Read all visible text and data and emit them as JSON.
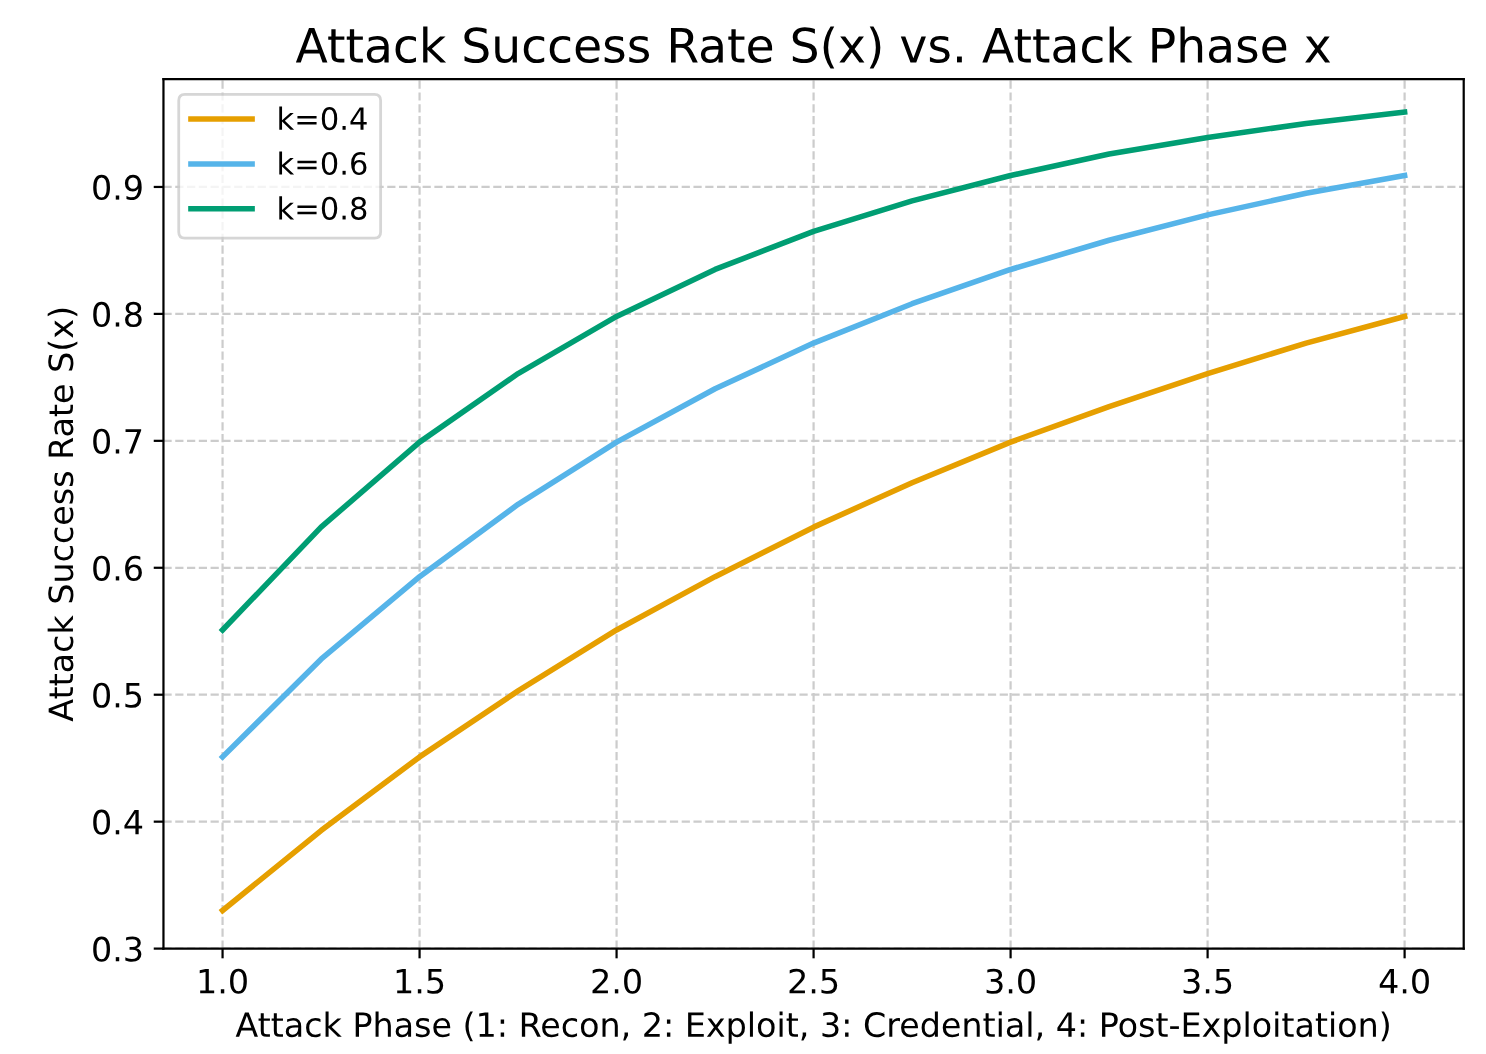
{
  "chart_data": {
    "type": "line",
    "title": "Attack Success Rate S(x) vs. Attack Phase x",
    "xlabel": "Attack Phase (1: Recon, 2: Exploit, 3: Credential, 4: Post-Exploitation)",
    "ylabel": "Attack Success Rate S(x)",
    "x": [
      1.0,
      1.25,
      1.5,
      1.75,
      2.0,
      2.25,
      2.5,
      2.75,
      3.0,
      3.25,
      3.5,
      3.75,
      4.0
    ],
    "series": [
      {
        "name": "k=0.4",
        "color": "#e69f00",
        "values": [
          0.33,
          0.393,
          0.451,
          0.503,
          0.551,
          0.593,
          0.632,
          0.667,
          0.699,
          0.727,
          0.753,
          0.777,
          0.798
        ]
      },
      {
        "name": "k=0.6",
        "color": "#56b4e9",
        "values": [
          0.451,
          0.528,
          0.593,
          0.65,
          0.699,
          0.741,
          0.777,
          0.808,
          0.835,
          0.858,
          0.878,
          0.895,
          0.909
        ]
      },
      {
        "name": "k=0.8",
        "color": "#009e73",
        "values": [
          0.551,
          0.632,
          0.699,
          0.753,
          0.798,
          0.835,
          0.865,
          0.889,
          0.909,
          0.926,
          0.939,
          0.95,
          0.959
        ]
      }
    ],
    "xlim": [
      0.85,
      4.15
    ],
    "ylim": [
      0.3,
      0.985
    ],
    "xticks": [
      {
        "value": 1.0,
        "label": "1.0"
      },
      1.5,
      {
        "value": 2.0,
        "label": "2.0"
      },
      2.5,
      {
        "value": 3.0,
        "label": "3.0"
      },
      3.5,
      {
        "value": 4.0,
        "label": "4.0"
      }
    ],
    "yticks": [
      0.3,
      0.4,
      0.5,
      0.6,
      0.7,
      0.8,
      0.9
    ],
    "grid": true,
    "legend": "top left",
    "marker": "none",
    "line_style": "solid"
  }
}
